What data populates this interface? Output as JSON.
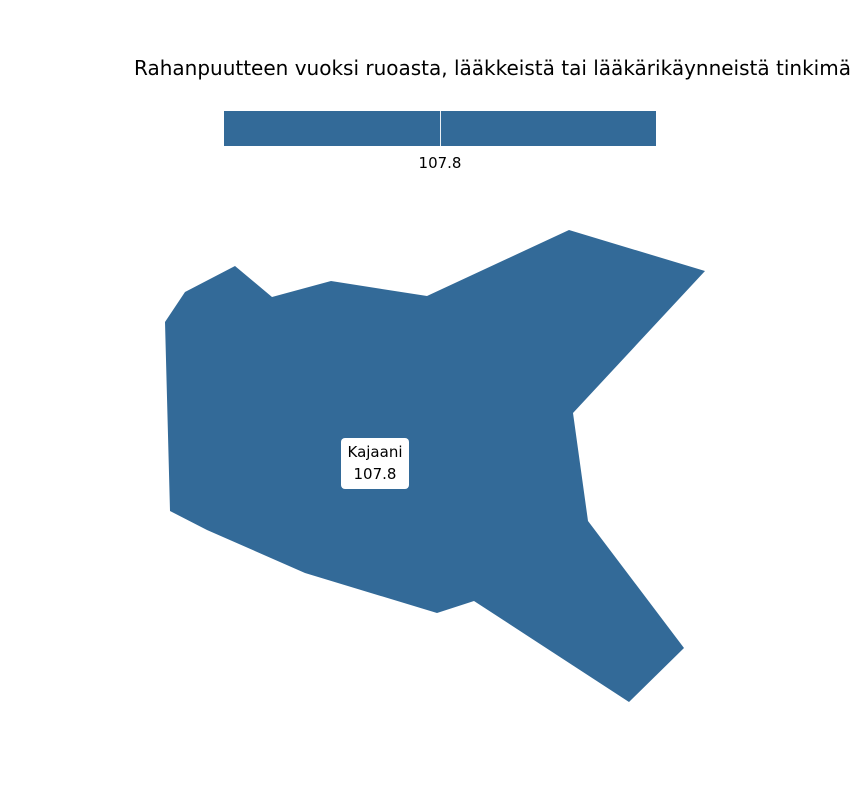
{
  "map": {
    "title": "Rahanpuutteen vuoksi ruoasta, lääkkeistä tai lääkärikäynneistä tinkimä",
    "fill_color": "#336a98",
    "background_color": "#ffffff",
    "legend": {
      "value_label": "107.8",
      "value": 107.8
    },
    "regions": [
      {
        "name": "Kajaani",
        "value_text": "107.8",
        "value": 107.8
      }
    ]
  }
}
